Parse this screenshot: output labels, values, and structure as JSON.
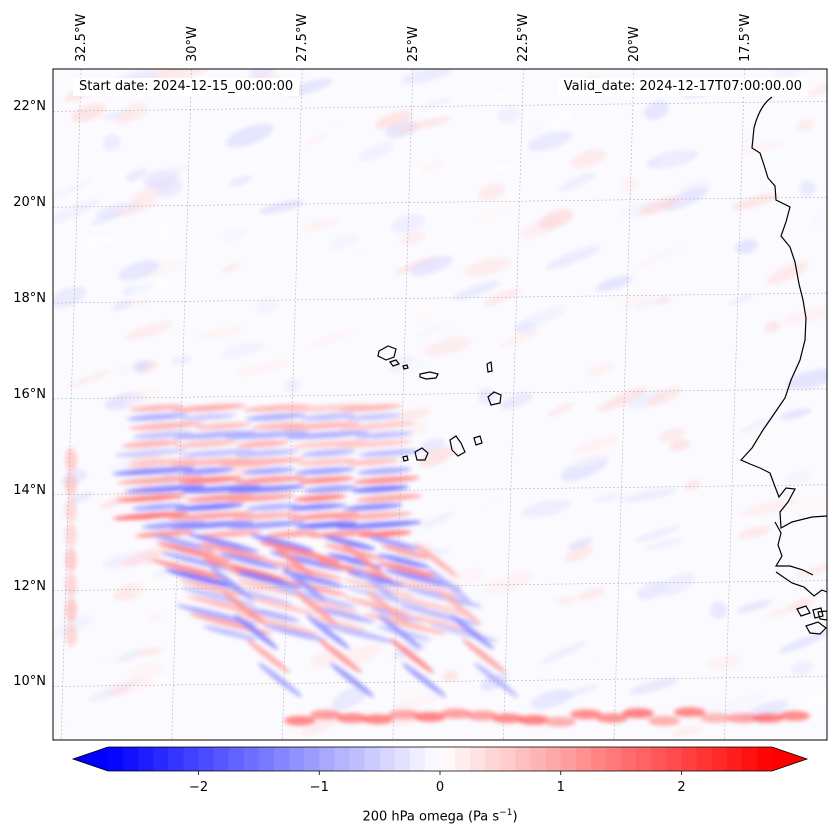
{
  "map": {
    "start_date": "Start date: 2024-12-15_00:00:00",
    "valid_date": "Valid_date: 2024-12-17T07:00:00.00",
    "variable": "200 hPa omega",
    "extent": {
      "lon_min": -33.0,
      "lon_max": -15.5,
      "lat_min": 8.8,
      "lat_max": 22.8
    },
    "lon_ticks": [
      {
        "value": -32.5,
        "label": "32.5°W"
      },
      {
        "value": -30.0,
        "label": "30°W"
      },
      {
        "value": -27.5,
        "label": "27.5°W"
      },
      {
        "value": -25.0,
        "label": "25°W"
      },
      {
        "value": -22.5,
        "label": "22.5°W"
      },
      {
        "value": -20.0,
        "label": "20°W"
      },
      {
        "value": -17.5,
        "label": "17.5°W"
      }
    ],
    "lat_ticks": [
      {
        "value": 22,
        "label": "22°N"
      },
      {
        "value": 20,
        "label": "20°N"
      },
      {
        "value": 18,
        "label": "18°N"
      },
      {
        "value": 16,
        "label": "16°N"
      },
      {
        "value": 14,
        "label": "14°N"
      },
      {
        "value": 12,
        "label": "12°N"
      },
      {
        "value": 10,
        "label": "10°N"
      }
    ]
  },
  "colorbar": {
    "label_text": "200 hPa omega (Pa s",
    "label_exp": "−1",
    "label_close": ")",
    "vmin": -2.75,
    "vmax": 2.75,
    "extend": "both",
    "colormap": "bwr",
    "low_color": "#0000ff",
    "mid_color": "#ffffff",
    "high_color": "#ff0000",
    "ticks": [
      {
        "value": -2,
        "label": "−2"
      },
      {
        "value": -1,
        "label": "−1"
      },
      {
        "value": 0,
        "label": "0"
      },
      {
        "value": 1,
        "label": "1"
      },
      {
        "value": 2,
        "label": "2"
      }
    ]
  },
  "colors": {
    "coastline": "#000000",
    "gridline": "#b0b0b0",
    "frame": "#000000"
  }
}
